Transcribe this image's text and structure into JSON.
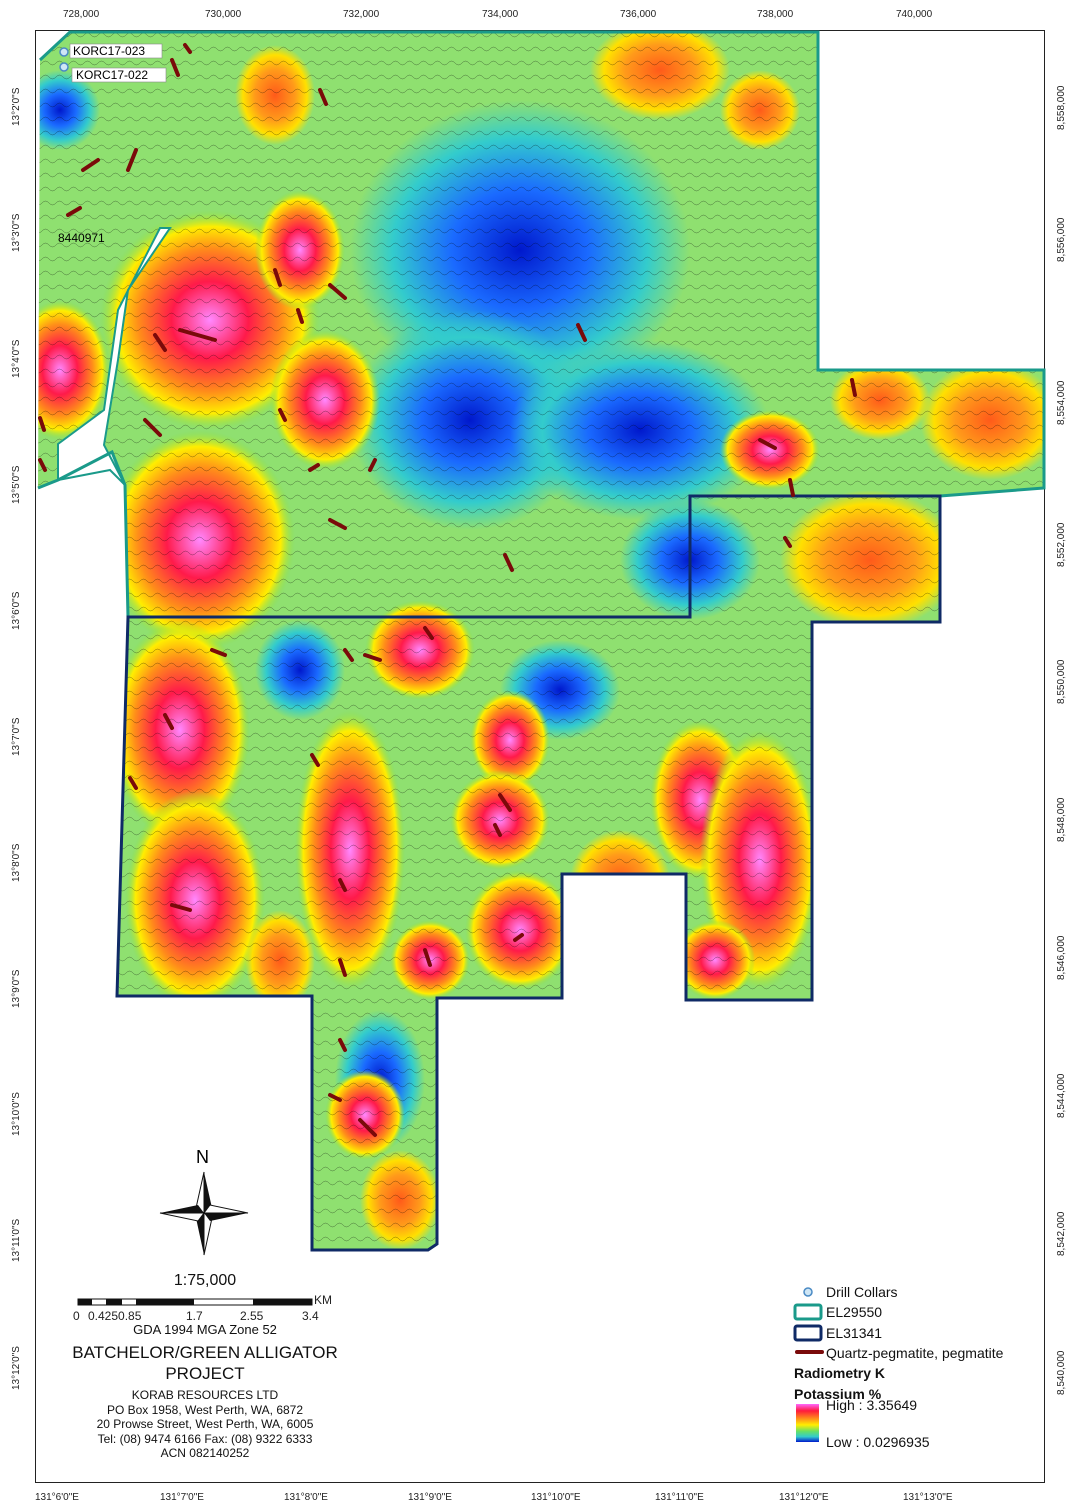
{
  "map": {
    "top_ticks": [
      "728,000",
      "730,000",
      "732,000",
      "734,000",
      "736,000",
      "738,000",
      "740,000"
    ],
    "right_ticks": [
      "8,558,000",
      "8,556,000",
      "8,554,000",
      "8,552,000",
      "8,550,000",
      "8,548,000",
      "8,546,000",
      "8,544,000",
      "8,542,000",
      "8,540,000"
    ],
    "left_ticks": [
      "13°2'0\"S",
      "13°3'0\"S",
      "13°4'0\"S",
      "13°5'0\"S",
      "13°6'0\"S",
      "13°7'0\"S",
      "13°8'0\"S",
      "13°9'0\"S",
      "13°10'0\"S",
      "13°11'0\"S",
      "13°12'0\"S"
    ],
    "bottom_ticks": [
      "131°6'0\"E",
      "131°7'0\"E",
      "131°8'0\"E",
      "131°9'0\"E",
      "131°10'0\"E",
      "131°11'0\"E",
      "131°12'0\"E",
      "131°13'0\"E"
    ],
    "drill_labels": [
      "KORC17-023",
      "KORC17-022"
    ],
    "point_label": "8440971",
    "north_label": "N"
  },
  "title_block": {
    "scale": "1:75,000",
    "scalebar_ticks": [
      "0",
      "0.4250.85",
      "1.7",
      "2.55",
      "3.4"
    ],
    "scalebar_unit": "KM",
    "datum": "GDA 1994 MGA Zone 52",
    "project_line1": "BATCHELOR/GREEN ALLIGATOR",
    "project_line2": "PROJECT",
    "company_lines": [
      "KORAB RESOURCES LTD",
      "PO Box 1958, West Perth, WA, 6872",
      "20 Prowse Street, West Perth, WA, 6005",
      "Tel: (08) 9474 6166 Fax: (08) 9322 6333",
      "ACN 082140252"
    ]
  },
  "legend": {
    "drill_collars": "Drill Collars",
    "el1": "EL29550",
    "el2": "EL31341",
    "pegmatite": "Quartz-pegmatite, pegmatite",
    "radiometry_title": "Radiometry K",
    "potassium": "Potassium %",
    "high": "High : 3.35649",
    "low": "Low : 0.0296935"
  },
  "colors": {
    "el29550": "#1a9a8a",
    "el31341": "#0f2a66",
    "pegmatite": "#7a0a0a",
    "ramp": [
      "#ff66ff",
      "#ff1a3c",
      "#ff8c1a",
      "#ffee00",
      "#66e066",
      "#33cccc",
      "#1a6aff",
      "#0018cc"
    ]
  }
}
